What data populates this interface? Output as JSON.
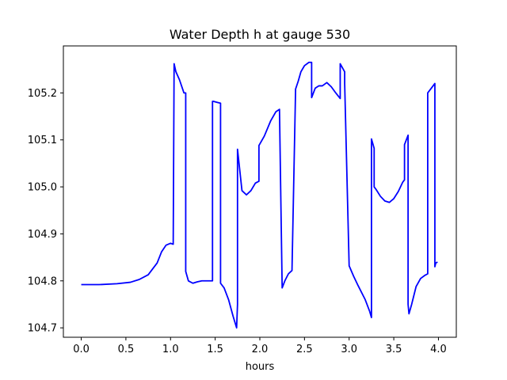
{
  "chart_data": {
    "type": "line",
    "title": "Water Depth h at gauge 530",
    "xlabel": "hours",
    "ylabel": "",
    "xlim": [
      -0.2,
      4.2
    ],
    "ylim": [
      104.68,
      105.3
    ],
    "grid": false,
    "legend": "none",
    "x_ticks": [
      0.0,
      0.5,
      1.0,
      1.5,
      2.0,
      2.5,
      3.0,
      3.5,
      4.0
    ],
    "x_tick_labels": [
      "0.0",
      "0.5",
      "1.0",
      "1.5",
      "2.0",
      "2.5",
      "3.0",
      "3.5",
      "4.0"
    ],
    "y_ticks": [
      104.7,
      104.8,
      104.9,
      105.0,
      105.1,
      105.2
    ],
    "y_tick_labels": [
      "104.7",
      "104.8",
      "104.9",
      "105.0",
      "105.1",
      "105.2"
    ],
    "series": [
      {
        "color": "#0000ff",
        "x": [
          0.0,
          0.2,
          0.4,
          0.55,
          0.65,
          0.75,
          0.85,
          0.9,
          0.95,
          1.0,
          1.03,
          1.04,
          1.04,
          1.06,
          1.1,
          1.15,
          1.17,
          1.17,
          1.2,
          1.25,
          1.3,
          1.35,
          1.4,
          1.47,
          1.47,
          1.48,
          1.52,
          1.56,
          1.56,
          1.6,
          1.65,
          1.7,
          1.74,
          1.74,
          1.75,
          1.75,
          1.8,
          1.85,
          1.9,
          1.95,
          1.99,
          1.99,
          2.05,
          2.12,
          2.18,
          2.22,
          2.25,
          2.25,
          2.28,
          2.32,
          2.36,
          2.4,
          2.4,
          2.43,
          2.46,
          2.5,
          2.55,
          2.58,
          2.58,
          2.62,
          2.66,
          2.7,
          2.75,
          2.8,
          2.85,
          2.9,
          2.9,
          2.95,
          2.95,
          3.0,
          3.05,
          3.1,
          3.18,
          3.23,
          3.25,
          3.25,
          3.28,
          3.28,
          3.3,
          3.35,
          3.4,
          3.45,
          3.5,
          3.55,
          3.6,
          3.62,
          3.62,
          3.66,
          3.66,
          3.67,
          3.7,
          3.75,
          3.8,
          3.85,
          3.88,
          3.88,
          3.92,
          3.96,
          3.96,
          3.97,
          3.99
        ],
        "y": [
          104.792,
          104.792,
          104.794,
          104.797,
          104.803,
          104.813,
          104.838,
          104.862,
          104.876,
          104.88,
          104.878,
          105.262,
          105.262,
          105.245,
          105.228,
          105.2,
          105.2,
          104.82,
          104.8,
          104.795,
          104.798,
          104.8,
          104.8,
          104.8,
          105.182,
          105.182,
          105.18,
          105.178,
          104.795,
          104.785,
          104.76,
          104.725,
          104.7,
          104.7,
          104.75,
          105.08,
          104.992,
          104.983,
          104.992,
          105.008,
          105.012,
          105.088,
          105.108,
          105.14,
          105.16,
          105.165,
          104.785,
          104.785,
          104.8,
          104.815,
          104.822,
          105.205,
          105.208,
          105.225,
          105.245,
          105.258,
          105.265,
          105.265,
          105.19,
          105.21,
          105.215,
          105.215,
          105.222,
          105.213,
          105.2,
          105.188,
          105.262,
          105.245,
          105.22,
          104.832,
          104.81,
          104.79,
          104.76,
          104.735,
          104.722,
          105.102,
          105.082,
          105.0,
          104.995,
          104.98,
          104.97,
          104.967,
          104.975,
          104.99,
          105.01,
          105.015,
          105.09,
          105.11,
          104.75,
          104.73,
          104.75,
          104.788,
          104.805,
          104.812,
          104.815,
          105.2,
          105.21,
          105.22,
          104.83,
          104.838,
          104.84
        ]
      }
    ]
  }
}
